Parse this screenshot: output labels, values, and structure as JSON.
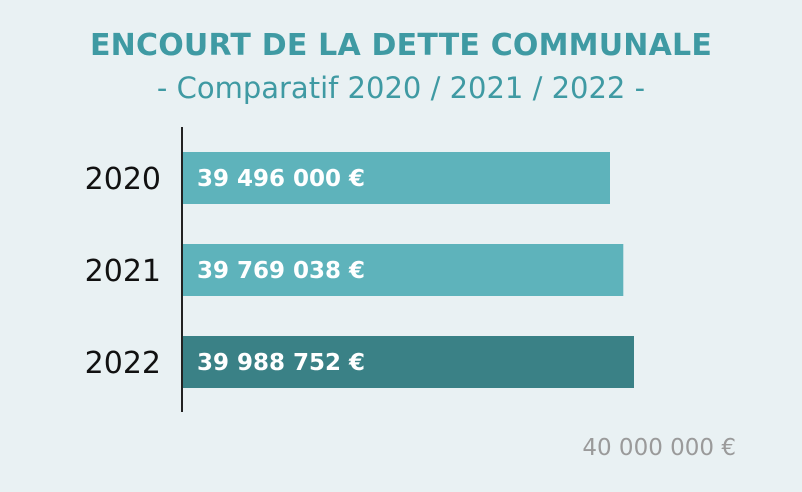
{
  "chart_data": {
    "type": "bar",
    "orientation": "horizontal",
    "title": "ENCOURT DE LA DETTE COMMUNALE",
    "subtitle": "- Comparatif 2020 / 2021 / 2022 -",
    "categories": [
      "2020",
      "2021",
      "2022"
    ],
    "values": [
      39496000,
      39769038,
      39988752
    ],
    "value_labels": [
      "39 496 000 €",
      "39 769 038 €",
      "39 988 752 €"
    ],
    "axis_max_label": "40 000 000 €",
    "bar_colors": [
      "#5eb3bb",
      "#5eb3bb",
      "#3a8186"
    ],
    "title_color": "#3f9aa3",
    "legend": "none",
    "grid": false
  }
}
